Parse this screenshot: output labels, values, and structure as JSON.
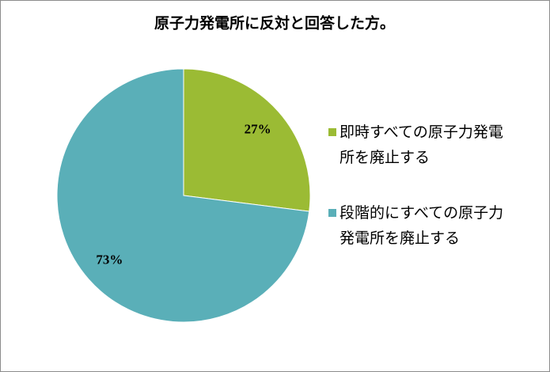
{
  "chart_data": {
    "type": "pie",
    "title": "原子力発電所に反対と回答した方。",
    "categories": [
      "即時すべての原子力発電所を廃止する",
      "段階的にすべての原子力発電所を廃止する"
    ],
    "values": [
      27,
      73
    ],
    "value_labels": [
      "27%",
      "73%"
    ],
    "colors": [
      "#9bbb34",
      "#5aafb8"
    ],
    "legend": "right"
  }
}
